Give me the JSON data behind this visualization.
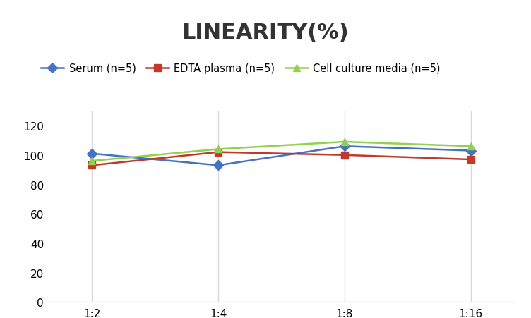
{
  "title": "LINEARITY(%)",
  "x_labels": [
    "1:2",
    "1:4",
    "1:8",
    "1:16"
  ],
  "x_positions": [
    0,
    1,
    2,
    3
  ],
  "series": [
    {
      "label": "Serum (n=5)",
      "values": [
        101,
        93,
        106,
        103
      ],
      "color": "#4472C4",
      "marker": "D",
      "linewidth": 1.8
    },
    {
      "label": "EDTA plasma (n=5)",
      "values": [
        93,
        102,
        100,
        97
      ],
      "color": "#C0392B",
      "marker": "s",
      "linewidth": 1.8
    },
    {
      "label": "Cell culture media (n=5)",
      "values": [
        96,
        104,
        109,
        106
      ],
      "color": "#92D050",
      "marker": "^",
      "linewidth": 1.8
    }
  ],
  "ylim": [
    0,
    130
  ],
  "yticks": [
    0,
    20,
    40,
    60,
    80,
    100,
    120
  ],
  "grid_color": "#D9D9D9",
  "background_color": "#FFFFFF",
  "title_fontsize": 22,
  "legend_fontsize": 10.5,
  "tick_fontsize": 11
}
